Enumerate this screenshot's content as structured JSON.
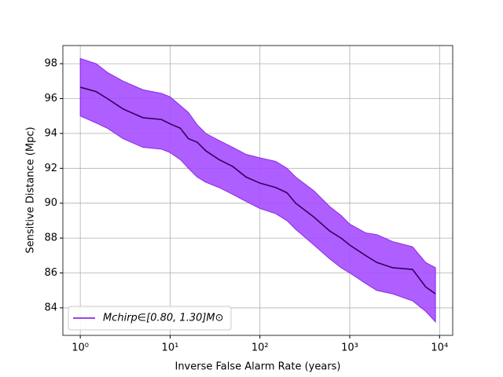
{
  "chart_data": {
    "type": "line",
    "xlabel": "Inverse False Alarm Rate (years)",
    "ylabel": "Sensitive Distance (Mpc)",
    "x": [
      1,
      1.5,
      2,
      3,
      5,
      8,
      10,
      13,
      16,
      20,
      25,
      35,
      50,
      70,
      100,
      150,
      200,
      250,
      400,
      600,
      800,
      1000,
      1500,
      2000,
      3000,
      5000,
      7000,
      9000
    ],
    "series": [
      {
        "name": "Mchirp∈[0.80, 1.30]M⊙",
        "color": "#8a2be2",
        "line_color": "#35005c",
        "fill_color": "#a64dff",
        "values": [
          96.65,
          96.4,
          96.0,
          95.4,
          94.9,
          94.8,
          94.55,
          94.3,
          93.7,
          93.5,
          93.0,
          92.5,
          92.1,
          91.5,
          91.15,
          90.9,
          90.6,
          90.0,
          89.2,
          88.4,
          88.0,
          87.6,
          87.0,
          86.6,
          86.3,
          86.2,
          85.2,
          84.8
        ],
        "upper": [
          98.3,
          98.0,
          97.5,
          97.0,
          96.5,
          96.3,
          96.1,
          95.6,
          95.2,
          94.5,
          94.0,
          93.6,
          93.2,
          92.8,
          92.6,
          92.4,
          92.0,
          91.5,
          90.7,
          89.8,
          89.3,
          88.8,
          88.3,
          88.2,
          87.8,
          87.5,
          86.6,
          86.3
        ],
        "lower": [
          95.0,
          94.6,
          94.3,
          93.7,
          93.2,
          93.1,
          92.9,
          92.5,
          92.0,
          91.5,
          91.2,
          90.9,
          90.5,
          90.1,
          89.7,
          89.4,
          89.0,
          88.5,
          87.6,
          86.8,
          86.3,
          86.0,
          85.4,
          85.0,
          84.8,
          84.4,
          83.8,
          83.2
        ]
      }
    ],
    "xscale": "log",
    "xlim": [
      0.64,
      14000
    ],
    "ylim": [
      82.42,
      99.04
    ],
    "xticks": [
      {
        "value": 1,
        "label": "10⁰"
      },
      {
        "value": 10,
        "label": "10¹"
      },
      {
        "value": 100,
        "label": "10²"
      },
      {
        "value": 1000,
        "label": "10³"
      },
      {
        "value": 10000,
        "label": "10⁴"
      }
    ],
    "yticks": [
      84,
      86,
      88,
      90,
      92,
      94,
      96,
      98
    ],
    "grid": true,
    "legend": "lower left"
  }
}
